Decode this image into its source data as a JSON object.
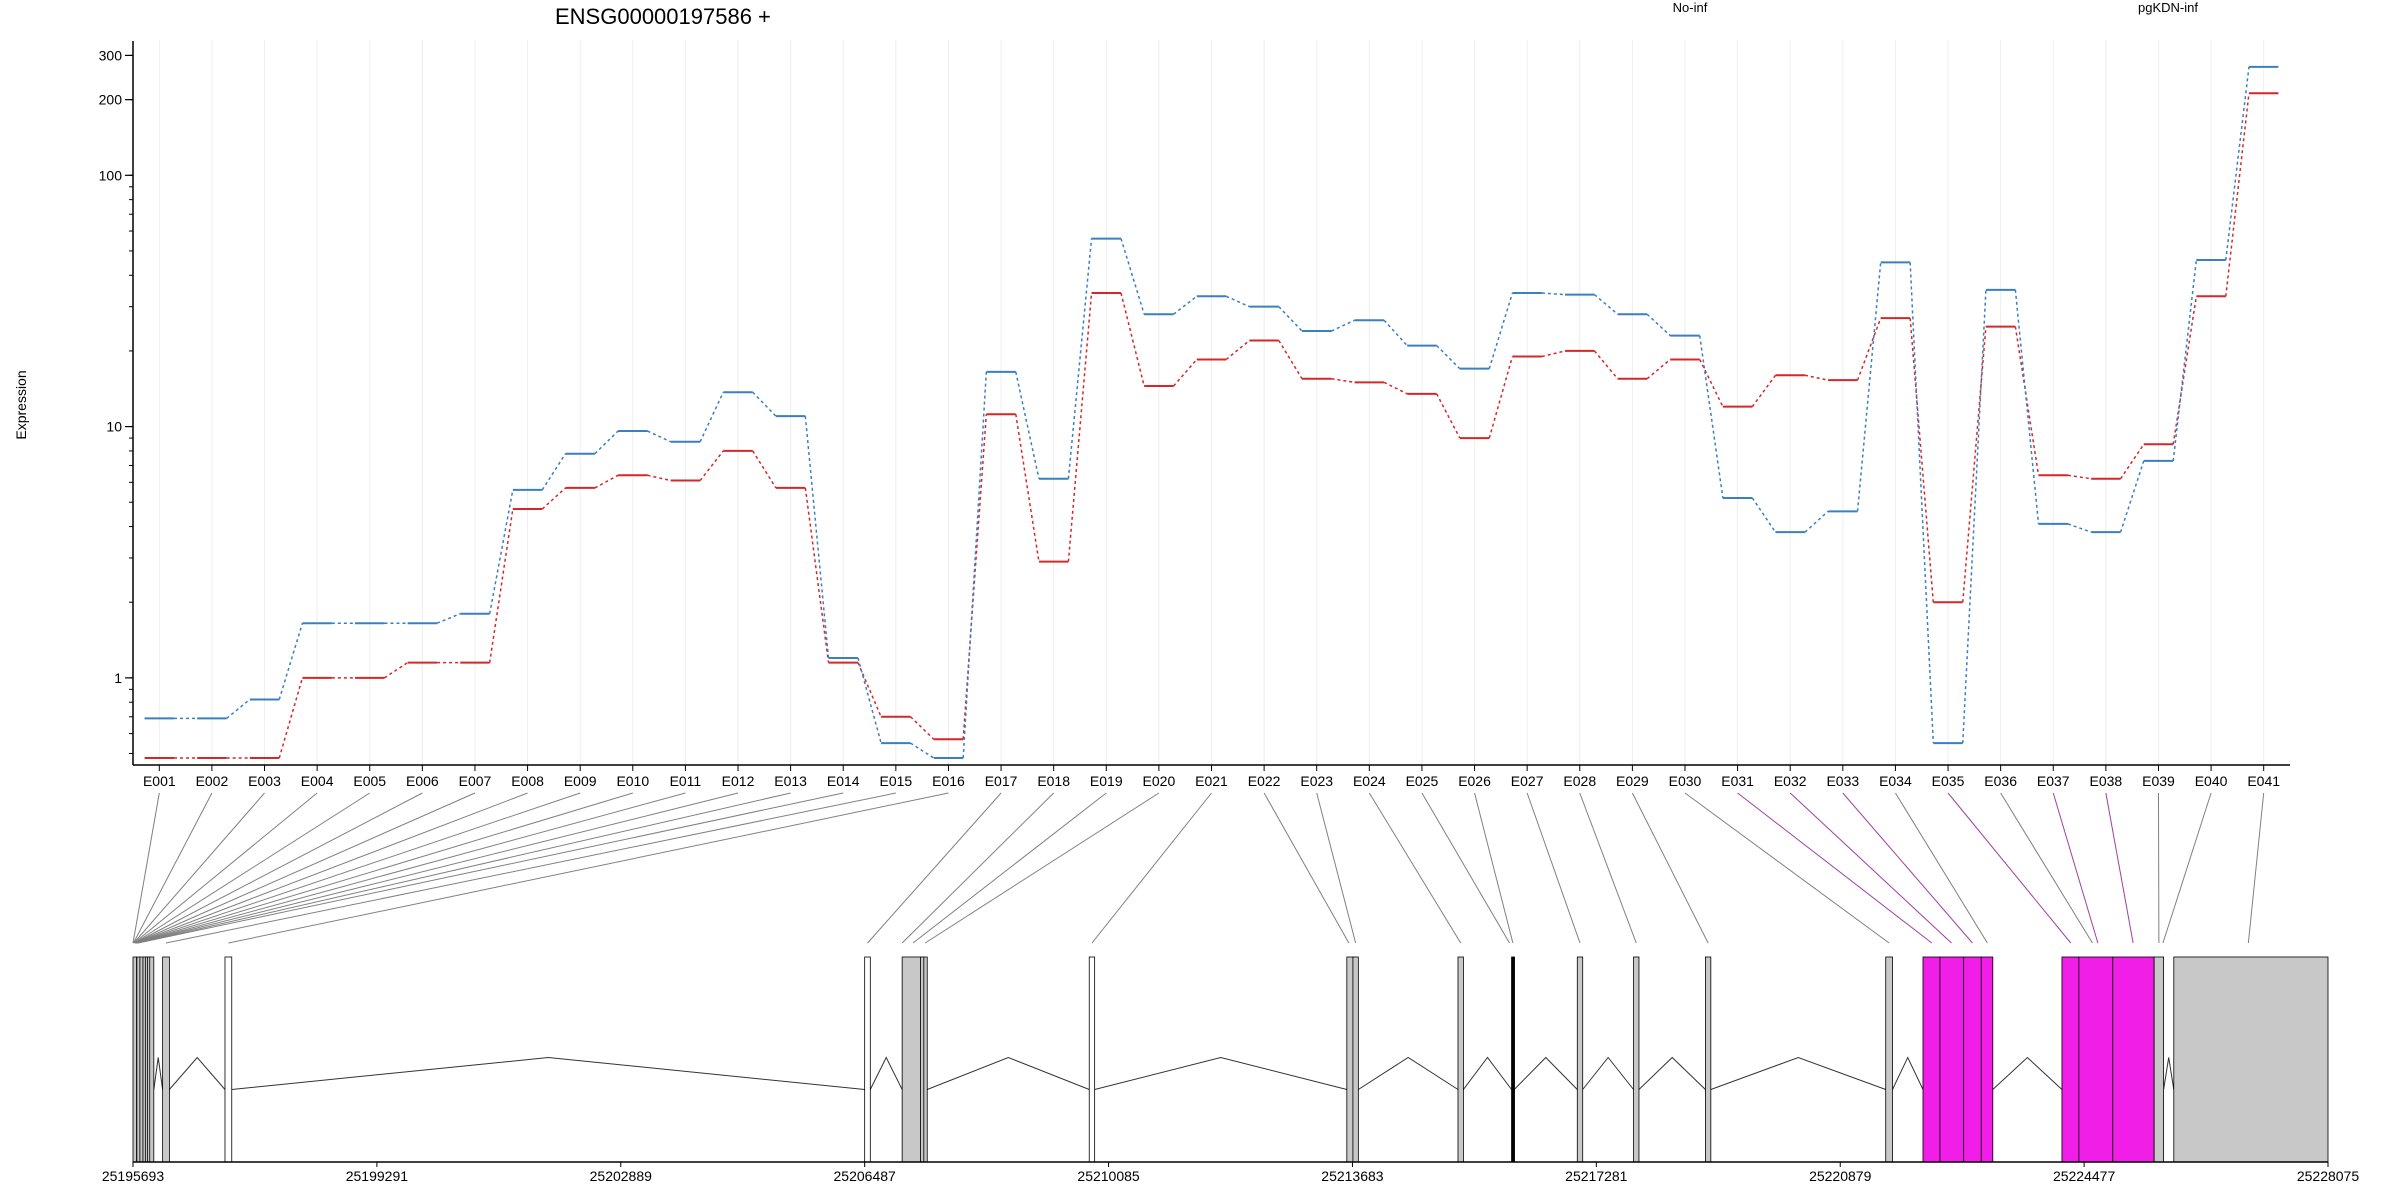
{
  "chart_data": {
    "type": "line",
    "title": "ENSG00000197586 +",
    "ylabel": "Expression",
    "xlabel": "",
    "yscale": "log",
    "ylim": [
      0.45,
      330
    ],
    "yticks": [
      "1",
      "10",
      "100",
      "200",
      "300"
    ],
    "categories": [
      "E001",
      "E002",
      "E003",
      "E004",
      "E005",
      "E006",
      "E007",
      "E008",
      "E009",
      "E010",
      "E011",
      "E012",
      "E013",
      "E014",
      "E015",
      "E016",
      "E017",
      "E018",
      "E019",
      "E020",
      "E021",
      "E022",
      "E023",
      "E024",
      "E025",
      "E026",
      "E027",
      "E028",
      "E029",
      "E030",
      "E031",
      "E032",
      "E033",
      "E034",
      "E035",
      "E036",
      "E037",
      "E038",
      "E039",
      "E040",
      "E041"
    ],
    "series": [
      {
        "name": "No-inf",
        "color": "#d62728",
        "values": [
          0.48,
          0.48,
          0.48,
          1.0,
          1.0,
          1.15,
          1.15,
          4.7,
          5.7,
          6.4,
          6.1,
          8.0,
          5.7,
          1.15,
          0.7,
          0.57,
          11.2,
          2.9,
          34,
          14.5,
          18.5,
          22,
          15.5,
          15,
          13.5,
          9,
          19,
          20,
          15.5,
          18.5,
          12,
          16,
          15.3,
          27,
          2.0,
          25,
          6.4,
          6.2,
          8.5,
          33,
          212
        ]
      },
      {
        "name": "pgKDN-inf",
        "color": "#3a7fc1",
        "values": [
          0.69,
          0.69,
          0.82,
          1.65,
          1.65,
          1.65,
          1.8,
          5.6,
          7.8,
          9.6,
          8.7,
          13.7,
          11.0,
          1.2,
          0.55,
          0.48,
          16.5,
          6.2,
          56,
          28,
          33,
          30,
          24,
          26.5,
          21,
          17,
          34,
          33.5,
          28,
          23,
          5.2,
          3.8,
          4.6,
          45,
          0.55,
          35,
          4.1,
          3.8,
          7.3,
          46,
          270
        ]
      }
    ],
    "grid": true,
    "legend": "top"
  },
  "gene_model": {
    "coordinate_labels": [
      "25195693",
      "25199291",
      "25202889",
      "25206487",
      "25210085",
      "25213683",
      "25217281",
      "25220879",
      "25224477",
      "25228075"
    ],
    "coord_min": 25195693,
    "coord_max": 25228075,
    "exons": [
      {
        "start": 25195693,
        "end": 25195745,
        "fill": "#c8c8c8"
      },
      {
        "start": 25195750,
        "end": 25195790,
        "fill": "#c8c8c8"
      },
      {
        "start": 25195795,
        "end": 25195835,
        "fill": "#c8c8c8"
      },
      {
        "start": 25195840,
        "end": 25195870,
        "fill": "#c8c8c8"
      },
      {
        "start": 25195875,
        "end": 25195900,
        "fill": "#c8c8c8"
      },
      {
        "start": 25195905,
        "end": 25195935,
        "fill": "#c8c8c8"
      },
      {
        "start": 25195940,
        "end": 25196000,
        "fill": "#c8c8c8"
      },
      {
        "start": 25196130,
        "end": 25196230,
        "fill": "#c8c8c8"
      },
      {
        "start": 25197050,
        "end": 25197150,
        "fill": "#ffffff"
      },
      {
        "start": 25206487,
        "end": 25206570,
        "fill": "#ffffff"
      },
      {
        "start": 25207040,
        "end": 25207310,
        "fill": "#c8c8c8"
      },
      {
        "start": 25207310,
        "end": 25207360,
        "fill": "#c8c8c8"
      },
      {
        "start": 25207360,
        "end": 25207410,
        "fill": "#c8c8c8"
      },
      {
        "start": 25209800,
        "end": 25209880,
        "fill": "#ffffff"
      },
      {
        "start": 25213600,
        "end": 25213690,
        "fill": "#c8c8c8"
      },
      {
        "start": 25213690,
        "end": 25213770,
        "fill": "#c8c8c8"
      },
      {
        "start": 25215240,
        "end": 25215320,
        "fill": "#c8c8c8"
      },
      {
        "start": 25216030,
        "end": 25216070,
        "fill": "#000000"
      },
      {
        "start": 25217000,
        "end": 25217080,
        "fill": "#c8c8c8"
      },
      {
        "start": 25217830,
        "end": 25217910,
        "fill": "#c8c8c8"
      },
      {
        "start": 25218890,
        "end": 25218970,
        "fill": "#c8c8c8"
      },
      {
        "start": 25221550,
        "end": 25221650,
        "fill": "#c8c8c8"
      },
      {
        "start": 25222100,
        "end": 25222350,
        "fill": "#f01ee6"
      },
      {
        "start": 25222350,
        "end": 25222700,
        "fill": "#f01ee6"
      },
      {
        "start": 25222700,
        "end": 25222960,
        "fill": "#f01ee6"
      },
      {
        "start": 25222960,
        "end": 25223130,
        "fill": "#f01ee6"
      },
      {
        "start": 25224150,
        "end": 25224400,
        "fill": "#f01ee6"
      },
      {
        "start": 25224400,
        "end": 25224900,
        "fill": "#f01ee6"
      },
      {
        "start": 25224900,
        "end": 25225510,
        "fill": "#f01ee6"
      },
      {
        "start": 25225510,
        "end": 25225650,
        "fill": "#c8c8c8"
      },
      {
        "start": 25225800,
        "end": 25228075,
        "fill": "#c8c8c8"
      }
    ],
    "connectors": [
      {
        "bin": 1,
        "coord": 25195693,
        "color": "#808080"
      },
      {
        "bin": 2,
        "coord": 25195700,
        "color": "#808080"
      },
      {
        "bin": 3,
        "coord": 25195705,
        "color": "#808080"
      },
      {
        "bin": 4,
        "coord": 25195710,
        "color": "#808080"
      },
      {
        "bin": 5,
        "coord": 25195715,
        "color": "#808080"
      },
      {
        "bin": 6,
        "coord": 25195720,
        "color": "#808080"
      },
      {
        "bin": 7,
        "coord": 25195725,
        "color": "#808080"
      },
      {
        "bin": 8,
        "coord": 25195730,
        "color": "#808080"
      },
      {
        "bin": 9,
        "coord": 25195735,
        "color": "#808080"
      },
      {
        "bin": 10,
        "coord": 25195740,
        "color": "#808080"
      },
      {
        "bin": 11,
        "coord": 25195745,
        "color": "#808080"
      },
      {
        "bin": 12,
        "coord": 25195750,
        "color": "#808080"
      },
      {
        "bin": 13,
        "coord": 25195760,
        "color": "#808080"
      },
      {
        "bin": 14,
        "coord": 25195770,
        "color": "#808080"
      },
      {
        "bin": 15,
        "coord": 25196180,
        "color": "#808080"
      },
      {
        "bin": 16,
        "coord": 25197100,
        "color": "#808080"
      },
      {
        "bin": 17,
        "coord": 25206530,
        "color": "#808080"
      },
      {
        "bin": 18,
        "coord": 25207040,
        "color": "#808080"
      },
      {
        "bin": 19,
        "coord": 25207200,
        "color": "#808080"
      },
      {
        "bin": 20,
        "coord": 25207380,
        "color": "#808080"
      },
      {
        "bin": 21,
        "coord": 25209840,
        "color": "#808080"
      },
      {
        "bin": 22,
        "coord": 25213630,
        "color": "#808080"
      },
      {
        "bin": 23,
        "coord": 25213730,
        "color": "#808080"
      },
      {
        "bin": 24,
        "coord": 25215280,
        "color": "#808080"
      },
      {
        "bin": 25,
        "coord": 25216000,
        "color": "#808080"
      },
      {
        "bin": 26,
        "coord": 25216050,
        "color": "#808080"
      },
      {
        "bin": 27,
        "coord": 25217040,
        "color": "#808080"
      },
      {
        "bin": 28,
        "coord": 25217870,
        "color": "#808080"
      },
      {
        "bin": 29,
        "coord": 25218930,
        "color": "#808080"
      },
      {
        "bin": 30,
        "coord": 25221600,
        "color": "#808080"
      },
      {
        "bin": 31,
        "coord": 25222230,
        "color": "#a040a0"
      },
      {
        "bin": 32,
        "coord": 25222520,
        "color": "#a040a0"
      },
      {
        "bin": 33,
        "coord": 25222830,
        "color": "#a040a0"
      },
      {
        "bin": 34,
        "coord": 25223050,
        "color": "#808080"
      },
      {
        "bin": 35,
        "coord": 25224280,
        "color": "#a040a0"
      },
      {
        "bin": 36,
        "coord": 25224600,
        "color": "#808080"
      },
      {
        "bin": 37,
        "coord": 25224680,
        "color": "#a040a0"
      },
      {
        "bin": 38,
        "coord": 25225200,
        "color": "#a040a0"
      },
      {
        "bin": 39,
        "coord": 25225580,
        "color": "#808080"
      },
      {
        "bin": 40,
        "coord": 25225640,
        "color": "#808080"
      },
      {
        "bin": 41,
        "coord": 25226900,
        "color": "#808080"
      }
    ]
  }
}
